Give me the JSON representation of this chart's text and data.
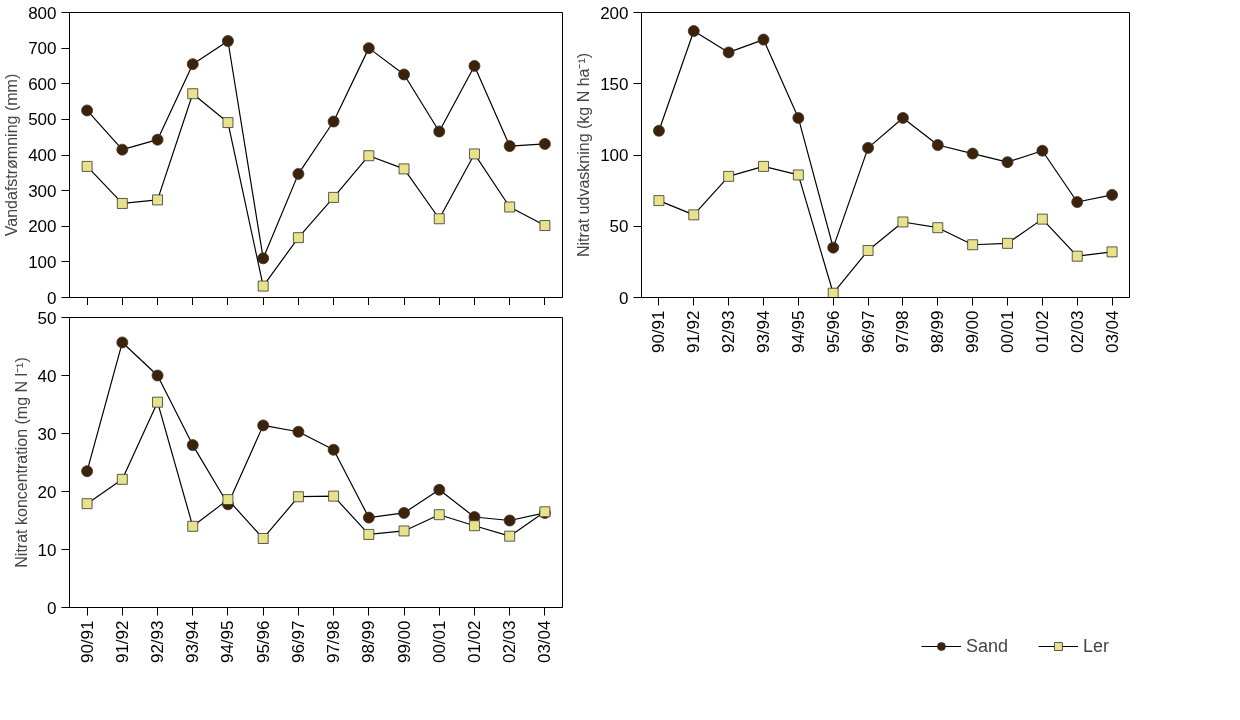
{
  "chart_data": [
    {
      "type": "line",
      "ylabel": "Vandafstrømning (mm)",
      "categories": [
        null,
        null,
        null,
        null,
        null,
        null,
        null,
        null,
        null,
        null,
        null,
        null,
        null,
        null
      ],
      "ylim": [
        0,
        800
      ],
      "yticks": [
        0,
        100,
        200,
        300,
        400,
        500,
        600,
        700,
        800
      ],
      "tick_labels": "y",
      "grid": false,
      "legend": false,
      "series": [
        {
          "color": "#3d2208",
          "marker": "circle",
          "values": [
            525,
            415,
            443,
            655,
            720,
            110,
            347,
            494,
            700,
            626,
            466,
            650,
            425,
            431
          ]
        },
        {
          "color": "#e8e28a",
          "marker": "square",
          "values": [
            368,
            264,
            274,
            572,
            491,
            32,
            168,
            281,
            398,
            361,
            221,
            403,
            254,
            202
          ]
        }
      ]
    },
    {
      "type": "line",
      "ylabel": "Nitrat udvaskning (kg N ha⁻¹)",
      "categories": [
        "90/91",
        "91/92",
        "92/93",
        "93/94",
        "94/95",
        "95/96",
        "96/97",
        "97/98",
        "98/99",
        "99/00",
        "00/01",
        "01/02",
        "02/03",
        "03/04"
      ],
      "ylim": [
        0,
        200
      ],
      "yticks": [
        0,
        50,
        100,
        150,
        200
      ],
      "grid": false,
      "legend": "bottom",
      "series": [
        {
          "name": "Sand",
          "color": "#3d2208",
          "marker": "circle",
          "values": [
            117,
            187,
            172,
            181,
            126,
            35,
            105,
            126,
            107,
            101,
            95,
            103,
            67,
            72
          ]
        },
        {
          "name": "Ler",
          "color": "#e8e28a",
          "marker": "square",
          "values": [
            68,
            58,
            85,
            92,
            86,
            3,
            33,
            53,
            49,
            37,
            38,
            55,
            29,
            32
          ]
        }
      ]
    },
    {
      "type": "line",
      "ylabel": "Nitrat koncentration (mg N l⁻¹)",
      "categories": [
        "90/91",
        "91/92",
        "92/93",
        "93/94",
        "94/95",
        "95/96",
        "96/97",
        "97/98",
        "98/99",
        "99/00",
        "00/01",
        "01/02",
        "02/03",
        "03/04"
      ],
      "ylim": [
        0,
        50
      ],
      "yticks": [
        0,
        10,
        20,
        30,
        40,
        50
      ],
      "grid": false,
      "legend": false,
      "series": [
        {
          "color": "#3d2208",
          "marker": "circle",
          "values": [
            23.5,
            45.7,
            40,
            28,
            17.8,
            31.4,
            30.3,
            27.2,
            15.5,
            16.3,
            20.3,
            15.6,
            15,
            16.3
          ]
        },
        {
          "color": "#e8e28a",
          "marker": "square",
          "values": [
            17.9,
            22.1,
            35.4,
            14,
            18.6,
            11.9,
            19.1,
            19.2,
            12.6,
            13.2,
            16,
            14.1,
            12.3,
            16.5
          ]
        }
      ]
    }
  ]
}
